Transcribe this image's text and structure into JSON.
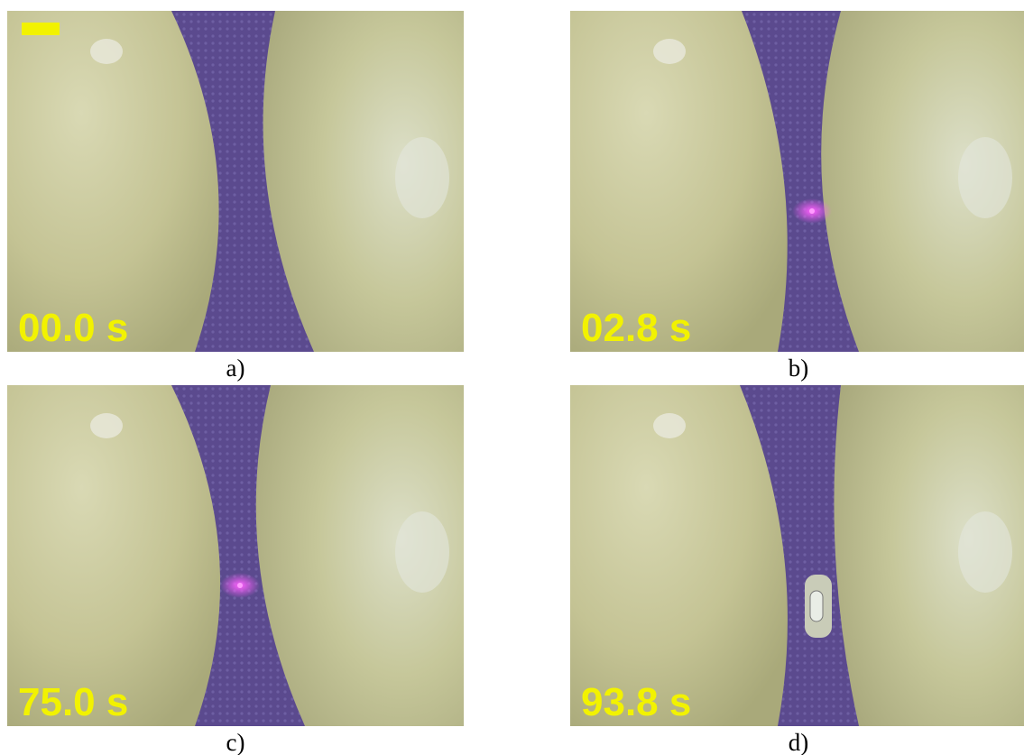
{
  "panels": [
    {
      "timestamp": "00.0 s",
      "caption": "a)"
    },
    {
      "timestamp": "02.8 s",
      "caption": "b)"
    },
    {
      "timestamp": "75.0 s",
      "caption": "c)"
    },
    {
      "timestamp": "93.8 s",
      "caption": "d)"
    }
  ]
}
